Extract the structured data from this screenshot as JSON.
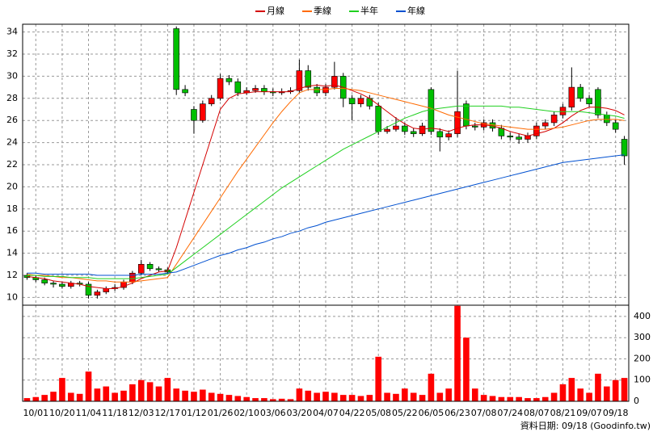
{
  "chart_data": [
    {
      "type": "candlestick",
      "categories": [
        null,
        "10/01",
        null,
        null,
        "10/20",
        null,
        null,
        "11/04",
        null,
        null,
        "11/18",
        null,
        null,
        "12/03",
        null,
        null,
        "12/17",
        null,
        null,
        "01/12",
        null,
        null,
        "01/26",
        null,
        null,
        "02/10",
        null,
        null,
        "03/06",
        null,
        null,
        "03/20",
        null,
        null,
        "04/07",
        null,
        null,
        "04/22",
        null,
        null,
        "05/08",
        null,
        null,
        "05/22",
        null,
        null,
        "06/05",
        null,
        null,
        "06/23",
        null,
        null,
        "07/08",
        null,
        null,
        "07/24",
        null,
        null,
        "08/07",
        null,
        null,
        "08/21",
        null,
        null,
        "09/07",
        null,
        null,
        "09/18",
        null
      ],
      "open": [
        12.0,
        11.8,
        11.6,
        11.3,
        11.2,
        11.0,
        11.3,
        11.2,
        10.2,
        10.5,
        10.8,
        10.9,
        11.4,
        12.2,
        13.0,
        12.6,
        12.5,
        34.3,
        28.8,
        27.0,
        26.0,
        27.5,
        28.0,
        29.8,
        29.5,
        28.5,
        28.7,
        28.9,
        28.6,
        28.5,
        28.6,
        28.7,
        30.5,
        29.0,
        28.5,
        29.0,
        30.0,
        28.0,
        27.5,
        28.0,
        27.3,
        25.0,
        25.2,
        25.5,
        25.0,
        24.8,
        28.8,
        25.0,
        24.5,
        24.8,
        27.5,
        25.5,
        25.4,
        25.8,
        25.3,
        24.6,
        24.5,
        24.3,
        24.6,
        25.5,
        25.8,
        26.5,
        27.2,
        29.0,
        28.0,
        28.8,
        26.5,
        25.8,
        24.3
      ],
      "high": [
        12.2,
        12.0,
        11.8,
        11.5,
        11.4,
        11.5,
        11.5,
        11.4,
        10.7,
        11.0,
        11.2,
        11.6,
        12.4,
        13.4,
        13.2,
        12.8,
        12.7,
        34.5,
        29.2,
        27.3,
        27.8,
        28.3,
        30.2,
        30.1,
        29.8,
        29.0,
        29.2,
        29.2,
        28.9,
        28.9,
        29.0,
        31.5,
        31.0,
        29.3,
        29.3,
        31.3,
        30.3,
        28.3,
        28.3,
        28.3,
        27.6,
        25.5,
        26.3,
        25.8,
        25.3,
        25.8,
        29.0,
        25.3,
        25.1,
        30.5,
        27.8,
        25.8,
        26.1,
        26.1,
        25.6,
        24.9,
        24.8,
        24.9,
        25.8,
        26.1,
        26.8,
        27.5,
        30.8,
        29.3,
        28.3,
        29.0,
        26.8,
        26.1,
        24.6
      ],
      "low": [
        11.6,
        11.4,
        11.1,
        10.9,
        10.8,
        10.8,
        11.0,
        9.9,
        9.9,
        10.3,
        10.6,
        10.7,
        11.2,
        12.0,
        12.4,
        12.3,
        12.1,
        28.3,
        28.2,
        24.8,
        25.8,
        27.3,
        27.8,
        29.2,
        28.2,
        28.3,
        28.5,
        28.3,
        28.2,
        28.3,
        28.4,
        28.5,
        28.7,
        28.2,
        28.2,
        28.8,
        27.2,
        26.0,
        27.2,
        27.0,
        24.7,
        24.8,
        25.0,
        24.7,
        24.5,
        24.6,
        24.7,
        23.2,
        24.2,
        24.5,
        25.2,
        25.1,
        25.1,
        25.0,
        24.3,
        24.2,
        23.9,
        24.0,
        24.3,
        25.2,
        25.5,
        26.2,
        26.9,
        27.7,
        27.2,
        26.2,
        25.5,
        24.9,
        22.0
      ],
      "close": [
        11.8,
        11.6,
        11.3,
        11.2,
        11.0,
        11.3,
        11.2,
        10.2,
        10.5,
        10.8,
        10.9,
        11.4,
        12.2,
        13.0,
        12.6,
        12.5,
        12.3,
        28.8,
        28.5,
        26.0,
        27.5,
        28.0,
        29.8,
        29.5,
        28.5,
        28.7,
        28.9,
        28.6,
        28.5,
        28.6,
        28.7,
        30.5,
        29.0,
        28.5,
        29.0,
        30.0,
        28.0,
        27.5,
        28.0,
        27.3,
        25.0,
        25.2,
        25.5,
        25.0,
        24.8,
        25.5,
        25.0,
        24.5,
        24.8,
        26.8,
        25.5,
        25.4,
        25.8,
        25.3,
        24.6,
        24.5,
        24.3,
        24.6,
        25.5,
        25.8,
        26.5,
        27.2,
        29.0,
        28.0,
        27.5,
        26.5,
        25.8,
        25.2,
        22.8
      ],
      "up_color": "#ff0000",
      "down_color": "#00c000",
      "series": [
        {
          "name": "月線",
          "color": "#d40000",
          "values": [
            11.9,
            11.8,
            11.7,
            11.5,
            11.4,
            11.3,
            11.2,
            11.0,
            10.9,
            10.8,
            10.8,
            11.0,
            11.3,
            11.7,
            12.0,
            12.3,
            12.4,
            14.5,
            17.0,
            19.5,
            22.0,
            24.5,
            27.0,
            28.0,
            28.4,
            28.5,
            28.6,
            28.6,
            28.6,
            28.6,
            28.6,
            28.9,
            29.1,
            29.2,
            29.1,
            29.2,
            29.0,
            28.7,
            28.4,
            28.0,
            27.4,
            26.8,
            26.2,
            25.7,
            25.3,
            25.2,
            25.3,
            25.2,
            25.0,
            25.3,
            25.5,
            25.6,
            25.6,
            25.5,
            25.3,
            25.0,
            24.8,
            24.6,
            24.8,
            25.0,
            25.3,
            25.8,
            26.4,
            26.9,
            27.2,
            27.2,
            27.1,
            26.9,
            26.5
          ]
        },
        {
          "name": "季線",
          "color": "#ff6a00",
          "values": [
            12.1,
            12.0,
            12.0,
            11.9,
            11.8,
            11.8,
            11.7,
            11.6,
            11.5,
            11.5,
            11.4,
            11.4,
            11.4,
            11.5,
            11.6,
            11.7,
            11.8,
            13.0,
            14.2,
            15.4,
            16.6,
            17.8,
            19.0,
            20.2,
            21.4,
            22.5,
            23.6,
            24.7,
            25.8,
            26.8,
            27.7,
            28.5,
            28.8,
            28.8,
            28.8,
            28.9,
            28.9,
            28.8,
            28.7,
            28.5,
            28.3,
            28.1,
            27.9,
            27.7,
            27.5,
            27.3,
            27.1,
            26.8,
            26.5,
            26.3,
            26.1,
            25.9,
            25.7,
            25.6,
            25.5,
            25.4,
            25.3,
            25.2,
            25.2,
            25.2,
            25.3,
            25.4,
            25.6,
            25.8,
            26.0,
            26.1,
            26.1,
            26.1,
            26.0
          ]
        },
        {
          "name": "半年",
          "color": "#20d020",
          "values": [
            12.0,
            12.0,
            11.9,
            11.9,
            11.9,
            11.8,
            11.8,
            11.8,
            11.7,
            11.7,
            11.7,
            11.7,
            11.7,
            11.8,
            11.9,
            12.0,
            12.1,
            12.7,
            13.3,
            13.9,
            14.5,
            15.1,
            15.7,
            16.3,
            16.9,
            17.5,
            18.1,
            18.7,
            19.3,
            19.9,
            20.4,
            20.9,
            21.4,
            21.9,
            22.4,
            22.9,
            23.4,
            23.8,
            24.2,
            24.6,
            25.0,
            25.4,
            25.8,
            26.2,
            26.5,
            26.8,
            27.0,
            27.1,
            27.2,
            27.3,
            27.3,
            27.3,
            27.3,
            27.3,
            27.3,
            27.2,
            27.2,
            27.1,
            27.0,
            26.9,
            26.8,
            26.8,
            26.8,
            26.8,
            26.7,
            26.6,
            26.5,
            26.4,
            26.2
          ]
        },
        {
          "name": "年線",
          "color": "#0050d0",
          "values": [
            12.2,
            12.2,
            12.1,
            12.1,
            12.1,
            12.1,
            12.1,
            12.1,
            12.0,
            12.0,
            12.0,
            12.0,
            12.0,
            12.1,
            12.1,
            12.1,
            12.2,
            12.3,
            12.6,
            12.9,
            13.2,
            13.5,
            13.8,
            14.0,
            14.3,
            14.5,
            14.8,
            15.0,
            15.3,
            15.5,
            15.8,
            16.0,
            16.3,
            16.5,
            16.8,
            17.0,
            17.2,
            17.4,
            17.6,
            17.8,
            18.0,
            18.2,
            18.4,
            18.6,
            18.8,
            19.0,
            19.2,
            19.4,
            19.6,
            19.8,
            20.0,
            20.2,
            20.4,
            20.6,
            20.8,
            21.0,
            21.2,
            21.4,
            21.6,
            21.8,
            22.0,
            22.2,
            22.3,
            22.4,
            22.5,
            22.6,
            22.7,
            22.8,
            22.9
          ]
        }
      ],
      "ylim": [
        9.3,
        34.7
      ],
      "yticks": [
        10,
        12,
        14,
        16,
        18,
        20,
        22,
        24,
        26,
        28,
        30,
        32,
        34
      ],
      "grid": true
    },
    {
      "type": "bar",
      "values": [
        15,
        20,
        30,
        45,
        110,
        40,
        35,
        140,
        60,
        70,
        40,
        50,
        80,
        100,
        90,
        70,
        110,
        60,
        50,
        45,
        55,
        40,
        35,
        30,
        25,
        20,
        15,
        15,
        10,
        12,
        10,
        60,
        50,
        40,
        45,
        40,
        30,
        30,
        25,
        30,
        210,
        40,
        35,
        60,
        40,
        30,
        130,
        40,
        60,
        450,
        300,
        60,
        30,
        25,
        20,
        20,
        20,
        15,
        15,
        20,
        40,
        80,
        110,
        60,
        40,
        130,
        70,
        100,
        110
      ],
      "color": "#ff0000",
      "ylim": [
        0,
        453
      ],
      "yticks": [
        0,
        100,
        200,
        300,
        400
      ],
      "grid": true
    }
  ],
  "source": "資料日期: 09/18 (Goodinfo.tw)"
}
